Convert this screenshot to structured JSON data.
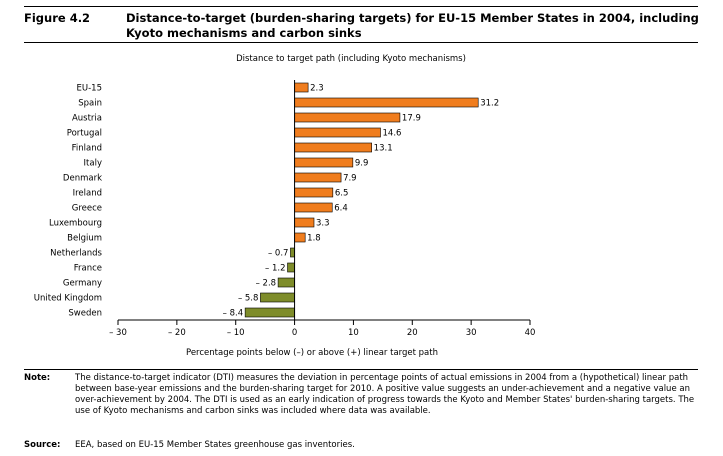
{
  "figure": {
    "label": "Figure 4.2",
    "title": "Distance-to-target (burden-sharing targets) for EU-15 Member States in 2004, including Kyoto mechanisms and carbon sinks"
  },
  "colors": {
    "positive": "#f07d1e",
    "negative": "#7e8c2a",
    "axis": "#000000"
  },
  "chart_data": {
    "type": "bar",
    "orientation": "horizontal",
    "title": "Distance to target path (including Kyoto mechanisms)",
    "xlabel": "Percentage points below (–) or above (+) linear target path",
    "ylabel": "",
    "xlim": [
      -30,
      40
    ],
    "xticks": [
      -30,
      -20,
      -10,
      0,
      10,
      20,
      30,
      40
    ],
    "xtick_labels": [
      "– 30",
      "– 20",
      "– 10",
      "0",
      "10",
      "20",
      "30",
      "40"
    ],
    "categories": [
      "EU-15",
      "Spain",
      "Austria",
      "Portugal",
      "Finland",
      "Italy",
      "Denmark",
      "Ireland",
      "Greece",
      "Luxembourg",
      "Belgium",
      "Netherlands",
      "France",
      "Germany",
      "United Kingdom",
      "Sweden"
    ],
    "values": [
      2.3,
      31.2,
      17.9,
      14.6,
      13.1,
      9.9,
      7.9,
      6.5,
      6.4,
      3.3,
      1.8,
      -0.7,
      -1.2,
      -2.8,
      -5.8,
      -8.4
    ],
    "value_labels": [
      "2.3",
      "31.2",
      "17.9",
      "14.6",
      "13.1",
      "9.9",
      "7.9",
      "6.5",
      "6.4",
      "3.3",
      "1.8",
      "– 0.7",
      "– 1.2",
      "– 2.8",
      "– 5.8",
      "– 8.4"
    ],
    "grid": false,
    "legend": "none"
  },
  "note": {
    "label": "Note:",
    "text": "The distance-to-target indicator (DTI) measures the deviation in percentage points of actual emissions in 2004 from a (hypothetical) linear path between base-year emissions and the burden-sharing target for 2010. A positive value suggests an under-achievement and a negative value an over-achievement by 2004. The DTI is used as an early indication of progress towards the Kyoto and Member States' burden-sharing targets. The use of Kyoto mechanisms and carbon sinks was included where data was available."
  },
  "source": {
    "label": "Source:",
    "text": "EEA, based on EU-15 Member States greenhouse gas inventories."
  }
}
